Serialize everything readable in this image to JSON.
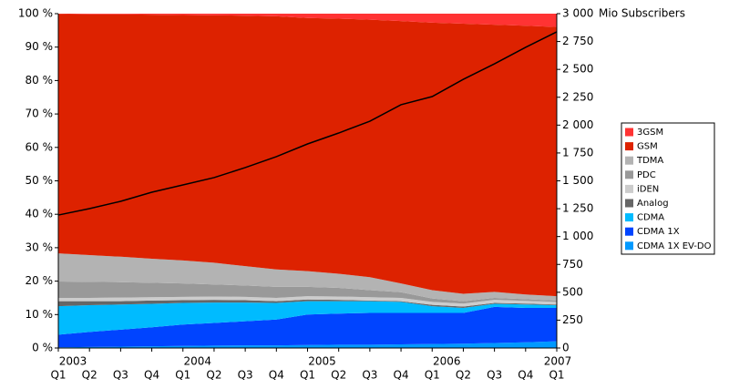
{
  "chart_data": {
    "type": "stacked_area",
    "categories": [
      "Q1",
      "Q2",
      "Q3",
      "Q4",
      "Q1",
      "Q2",
      "Q3",
      "Q4",
      "Q1",
      "Q2",
      "Q3",
      "Q4",
      "Q1",
      "Q2",
      "Q3",
      "Q4",
      "Q1"
    ],
    "years": [
      "2003",
      null,
      null,
      null,
      "2004",
      null,
      null,
      null,
      "2005",
      null,
      null,
      null,
      "2006",
      null,
      null,
      null,
      "2007"
    ],
    "series": [
      {
        "name": "CDMA 1X EV-DO",
        "color": "#0099ff",
        "values": [
          0.2,
          0.3,
          0.4,
          0.5,
          0.6,
          0.7,
          0.8,
          0.8,
          0.9,
          1.0,
          1.0,
          1.1,
          1.2,
          1.3,
          1.5,
          1.7,
          2.0
        ]
      },
      {
        "name": "CDMA 1X",
        "color": "#0044ff",
        "values": [
          3.8,
          4.5,
          5.1,
          5.7,
          6.4,
          6.8,
          7.2,
          7.7,
          9.1,
          9.3,
          9.5,
          9.4,
          9.3,
          9.2,
          10.8,
          10.3,
          10.0
        ]
      },
      {
        "name": "CDMA",
        "color": "#00bbff",
        "values": [
          8.5,
          8.0,
          7.5,
          7.0,
          6.5,
          6.1,
          5.6,
          5.0,
          4.0,
          3.7,
          3.5,
          3.3,
          2.0,
          1.5,
          0.9,
          1.0,
          0.8
        ]
      },
      {
        "name": "Analog",
        "color": "#666666",
        "values": [
          1.5,
          1.2,
          1.0,
          1.0,
          0.8,
          0.8,
          0.7,
          0.5,
          0.5,
          0.4,
          0.2,
          0.2,
          0.4,
          0.4,
          0.3,
          0.3,
          0.2
        ]
      },
      {
        "name": "iDEN",
        "color": "#cccccc",
        "values": [
          1.0,
          1.0,
          1.1,
          1.0,
          1.0,
          1.0,
          1.0,
          1.0,
          1.0,
          1.0,
          1.0,
          1.0,
          0.9,
          0.9,
          0.9,
          0.8,
          0.8
        ]
      },
      {
        "name": "PDC",
        "color": "#999999",
        "values": [
          4.9,
          4.8,
          4.6,
          4.3,
          4.0,
          3.6,
          3.4,
          3.3,
          2.8,
          2.6,
          2.1,
          1.7,
          1.0,
          0.7,
          0.6,
          0.5,
          0.4
        ]
      },
      {
        "name": "TDMA",
        "color": "#b3b3b3",
        "values": [
          8.4,
          8.0,
          7.6,
          7.2,
          6.9,
          6.5,
          5.8,
          5.2,
          4.7,
          4.2,
          3.9,
          2.6,
          2.5,
          2.2,
          1.8,
          1.4,
          1.3
        ]
      },
      {
        "name": "GSM",
        "color": "#dd2200",
        "values": [
          71.6,
          72.0,
          72.5,
          73.0,
          73.4,
          74.0,
          74.9,
          75.7,
          75.7,
          76.3,
          77.0,
          78.5,
          80.0,
          80.8,
          79.9,
          80.4,
          80.5
        ]
      },
      {
        "name": "3GSM",
        "color": "#ff3333",
        "values": [
          0.1,
          0.2,
          0.2,
          0.3,
          0.4,
          0.5,
          0.6,
          0.8,
          1.3,
          1.5,
          1.8,
          2.2,
          2.7,
          3.0,
          3.3,
          3.6,
          4.0
        ]
      }
    ],
    "subscribers": {
      "axis": "y2",
      "color": "#000000",
      "values": [
        1193,
        1251,
        1316,
        1398,
        1463,
        1529,
        1619,
        1717,
        1831,
        1929,
        2035,
        2183,
        2256,
        2411,
        2550,
        2698,
        2837
      ]
    },
    "ylim": [
      0,
      100
    ],
    "yticks": [
      {
        "value": 0,
        "label": "0 %"
      },
      {
        "value": 10,
        "label": "10 %"
      },
      {
        "value": 20,
        "label": "20 %"
      },
      {
        "value": 30,
        "label": "30 %"
      },
      {
        "value": 40,
        "label": "40 %"
      },
      {
        "value": 50,
        "label": "50 %"
      },
      {
        "value": 60,
        "label": "60 %"
      },
      {
        "value": 70,
        "label": "70 %"
      },
      {
        "value": 80,
        "label": "80 %"
      },
      {
        "value": 90,
        "label": "90 %"
      },
      {
        "value": 100,
        "label": "100 %"
      }
    ],
    "y2lim": [
      0,
      3000
    ],
    "y2ticks": [
      0,
      250,
      500,
      750,
      {
        "value": 1000,
        "label": "1 000"
      },
      {
        "value": 1250,
        "label": "1 250"
      },
      {
        "value": 1500,
        "label": "1 500"
      },
      {
        "value": 1750,
        "label": "1 750"
      },
      {
        "value": 2000,
        "label": "2 000"
      },
      {
        "value": 2250,
        "label": "2 250"
      },
      {
        "value": 2500,
        "label": "2 500"
      },
      {
        "value": 2750,
        "label": "2 750"
      },
      {
        "value": 3000,
        "label": "3 000"
      }
    ],
    "y2_label": "Mio Subscribers",
    "legend": "right"
  }
}
